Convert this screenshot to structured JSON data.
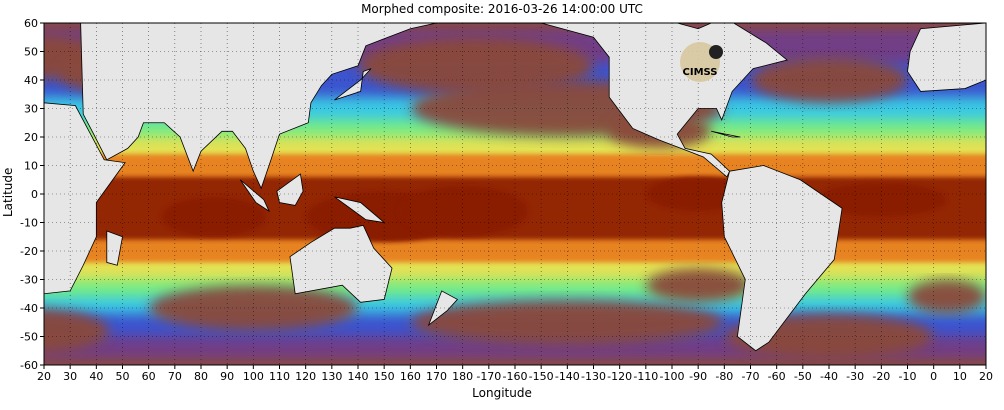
{
  "title": "Morphed composite: 2016-03-26 14:00:00 UTC",
  "xlabel": "Longitude",
  "ylabel": "Latitude",
  "logo_text": "CIMSS",
  "colors": {
    "land": "#e6e6e6",
    "background": "#ffffff",
    "low": "#8a4a3a",
    "mid_purple": "#6a3aa0",
    "mid_blue": "#2a5be6",
    "cyan": "#3ad6e6",
    "green": "#7ef07a",
    "yellow": "#f0e050",
    "orange": "#e87a1a",
    "high": "#8a1a00"
  },
  "chart_data": {
    "type": "heatmap",
    "xlim": [
      20,
      380
    ],
    "ylim": [
      -60,
      60
    ],
    "x_ticks": [
      "20",
      "30",
      "40",
      "50",
      "60",
      "70",
      "80",
      "90",
      "100",
      "110",
      "120",
      "130",
      "140",
      "150",
      "160",
      "170",
      "180",
      "-170",
      "-160",
      "-150",
      "-140",
      "-130",
      "-120",
      "-110",
      "-100",
      "-90",
      "-80",
      "-70",
      "-60",
      "-50",
      "-40",
      "-30",
      "-20",
      "-10",
      "0",
      "10",
      "20"
    ],
    "y_ticks": [
      "60",
      "50",
      "40",
      "30",
      "20",
      "10",
      "0",
      "-10",
      "-20",
      "-30",
      "-40",
      "-50",
      "-60"
    ],
    "grid": true
  }
}
